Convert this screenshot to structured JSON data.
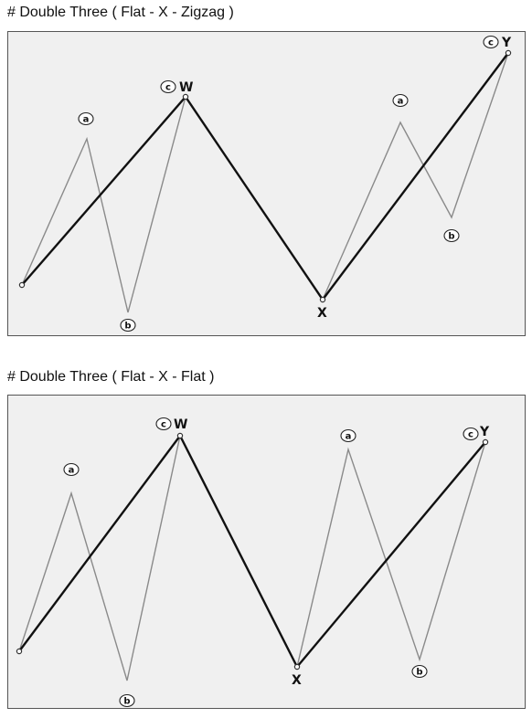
{
  "sections": [
    {
      "title": "# Double  Three  ( Flat - X - Zigzag )",
      "labels": {
        "a1": "a",
        "b1": "b",
        "c1": "c",
        "W": "W",
        "X": "X",
        "a2": "a",
        "b2": "b",
        "c2": "c",
        "Y": "Y"
      }
    },
    {
      "title": "# Double  Three  ( Flat - X - Flat )",
      "labels": {
        "a1": "a",
        "b1": "b",
        "c1": "c",
        "W": "W",
        "X": "X",
        "a2": "a",
        "b2": "b",
        "c2": "c",
        "Y": "Y"
      }
    }
  ],
  "colors": {
    "panel_background": "#f0f0f0",
    "sub_wave": "#8a8a8a",
    "main_wave": "#111111"
  }
}
